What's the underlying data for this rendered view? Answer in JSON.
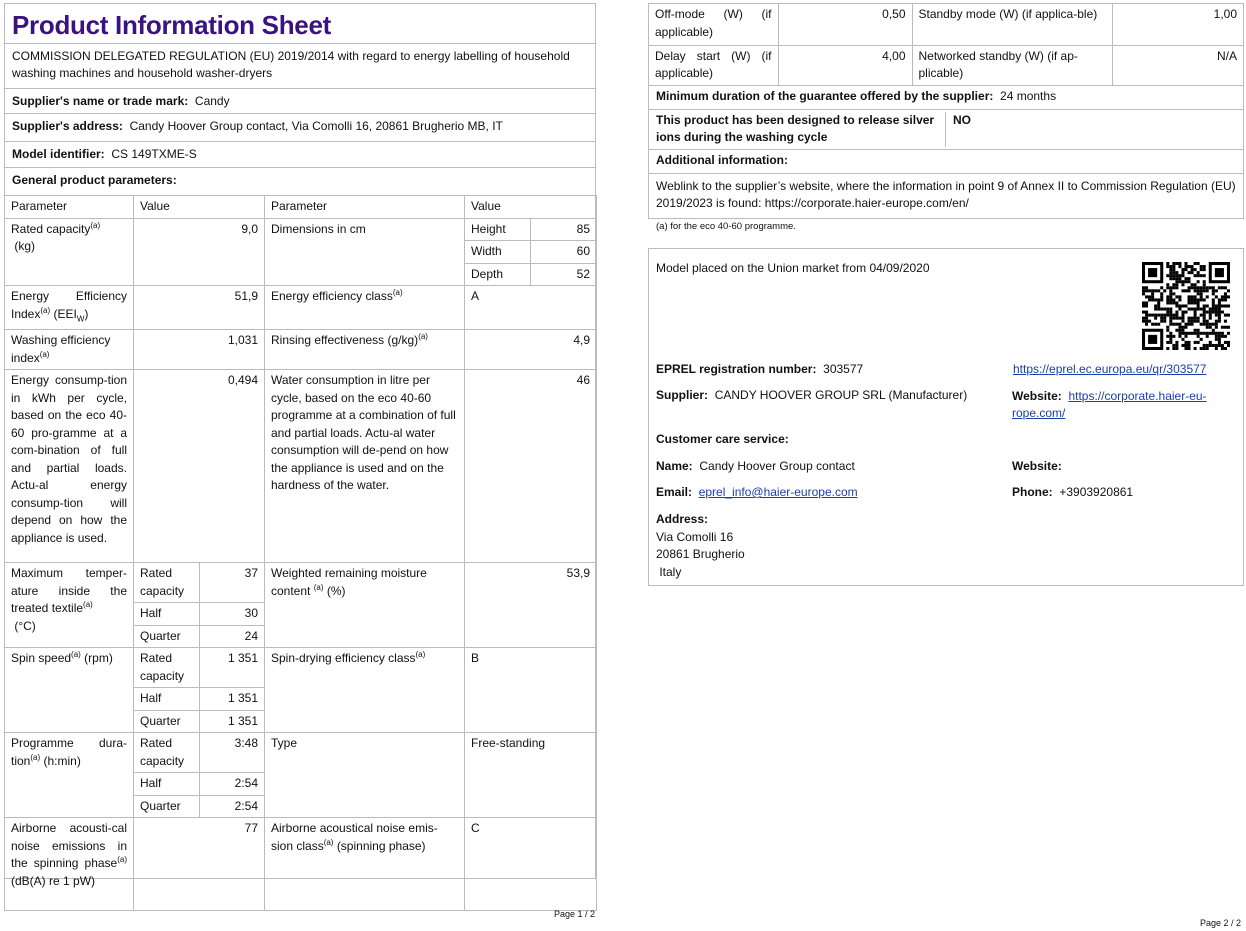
{
  "page1": {
    "title": "Product Information Sheet",
    "subtitle": "COMMISSION DELEGATED REGULATION (EU) 2019/2014 with regard to energy labelling of household washing machines and household washer-dryers",
    "supplier_name_label": "Supplier's name or trade mark:",
    "supplier_name": "Candy",
    "supplier_address_label": "Supplier's address:",
    "supplier_address": "Candy Hoover Group contact, Via Comolli 16, 20861 Brugherio MB, IT",
    "model_label": "Model identifier:",
    "model": "CS 149TXME-S",
    "general_label": "General product parameters:",
    "headers": [
      "Parameter",
      "Value",
      "Parameter",
      "Value"
    ],
    "rated_capacity": {
      "label": "Rated capacity",
      "unit": "(kg)",
      "value": "9,0"
    },
    "dimensions": {
      "label": "Dimensions in cm",
      "height_label": "Height",
      "height": "85",
      "width_label": "Width",
      "width": "60",
      "depth_label": "Depth",
      "depth": "52"
    },
    "eei": {
      "label": "Energy Efficiency Index",
      "unit": "(EEI",
      "sub": "W",
      "value": "51,9"
    },
    "energy_class": {
      "label": "Energy efficiency class",
      "value": "A"
    },
    "washing_eff": {
      "label": "Washing efficiency index",
      "value": "1,031"
    },
    "rinsing": {
      "label": "Rinsing effectiveness (g/kg)",
      "value": "4,9"
    },
    "energy_consumption": {
      "label": "Energy consump-tion in kWh per cycle, based on the eco 40-60 pro-gramme at a com-bination of full and partial loads. Actu-al energy consump-tion will depend on how the appliance is used.",
      "value": "0,494"
    },
    "water_consumption": {
      "label": "Water consumption in litre per cycle, based on the eco 40-60 programme at a combination of full and partial loads. Actu-al water consumption will de-pend on how the appliance is used and on the hardness of the water.",
      "value": "46"
    },
    "max_temp": {
      "label": "Maximum temper-ature inside the treated textile",
      "unit": "(°C)",
      "rated_label": "Rated capacity",
      "rated": "37",
      "half_label": "Half",
      "half": "30",
      "quarter_label": "Quarter",
      "quarter": "24"
    },
    "moisture": {
      "label": "Weighted remaining moisture content",
      "unit": "(%)",
      "value": "53,9"
    },
    "spin_speed": {
      "label": "Spin speed",
      "unit": "(rpm)",
      "rated_label": "Rated capacity",
      "rated": "1 351",
      "half_label": "Half",
      "half": "1 351",
      "quarter_label": "Quarter",
      "quarter": "1 351"
    },
    "spin_class": {
      "label": "Spin-drying efficiency class",
      "value": "B"
    },
    "programme": {
      "label": "Programme dura-tion",
      "unit": "(h:min)",
      "rated_label": "Rated capacity",
      "rated": "3:48",
      "half_label": "Half",
      "half": "2:54",
      "quarter_label": "Quarter",
      "quarter": "2:54"
    },
    "type": {
      "label": "Type",
      "value": "Free-standing"
    },
    "noise": {
      "label": "Airborne acousti-cal noise emissions in the spinning phase",
      "unit": "(dB(A) re 1 pW)",
      "value": "77"
    },
    "noise_class": {
      "label": "Airborne acoustical noise emis-sion class",
      "unit": "(spinning phase)",
      "value": "C"
    },
    "sup_mark": "(a)",
    "page_label": "Page 1 / 2"
  },
  "page2": {
    "off_mode": {
      "label": "Off-mode (W) (if applicable)",
      "value": "0,50"
    },
    "standby": {
      "label": "Standby mode (W) (if applica-ble)",
      "value": "1,00"
    },
    "delay": {
      "label": "Delay start (W) (if applicable)",
      "value": "4,00"
    },
    "networked": {
      "label": "Networked standby (W) (if ap-plicable)",
      "value": "N/A"
    },
    "guarantee_label": "Minimum duration of the guarantee offered by the supplier:",
    "guarantee": "24 months",
    "silver_label": "This product has been designed to release silver ions during the washing cycle",
    "silver": "NO",
    "additional_label": "Additional information:",
    "weblink": "Weblink to the supplier’s website, where the information in point 9 of Annex II to Commission Regulation (EU) 2019/2023 is found:  https://corporate.haier-europe.com/en/",
    "footnote": "(a) for the eco 40-60 programme.",
    "placed": "Model placed on the Union market from 04/09/2020",
    "eprel_label": "EPREL registration number:",
    "eprel": "303577",
    "eprel_link": "https://eprel.ec.europa.eu/qr/303577",
    "supplier_label": "Supplier:",
    "supplier": "CANDY HOOVER GROUP SRL (Manufacturer)",
    "website_label": "Website:",
    "website_line1": "https://corporate.haier-eu-",
    "website_line2": "rope.com/",
    "customer_care": "Customer care service:",
    "name_label": "Name:",
    "name": "Candy Hoover Group contact",
    "cc_website_label": "Website:",
    "email_label": "Email:",
    "email": "eprel_info@haier-europe.com",
    "phone_label": "Phone:",
    "phone": "+3903920861",
    "address_label": "Address:",
    "address": [
      "Via Comolli 16",
      "20861 Brugherio",
      " Italy"
    ],
    "qr_icon": "qr-code",
    "page_label": "Page 2 / 2"
  }
}
